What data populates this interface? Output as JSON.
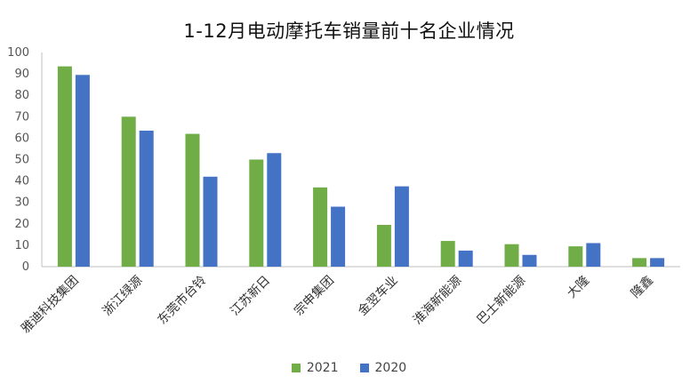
{
  "chart_data": {
    "type": "bar",
    "title": "1-12月电动摩托车销量前十名企业情况",
    "categories": [
      "雅迪科技集团",
      "浙江绿源",
      "东莞市台铃",
      "江苏新日",
      "宗申集团",
      "金翌车业",
      "淮海新能源",
      "巴士新能源",
      "大隆",
      "隆鑫"
    ],
    "series": [
      {
        "name": "2021",
        "color": "#70ad47",
        "values": [
          93.5,
          70,
          62,
          50,
          37,
          19.5,
          12,
          10.5,
          9.5,
          4
        ]
      },
      {
        "name": "2020",
        "color": "#4472c4",
        "values": [
          89.5,
          63.5,
          42,
          53,
          28,
          37.5,
          7.5,
          5.5,
          11,
          4
        ]
      }
    ],
    "ylim": [
      0,
      100
    ],
    "yticks": [
      0,
      10,
      20,
      30,
      40,
      50,
      60,
      70,
      80,
      90,
      100
    ],
    "grid": false,
    "legend_position": "bottom"
  }
}
